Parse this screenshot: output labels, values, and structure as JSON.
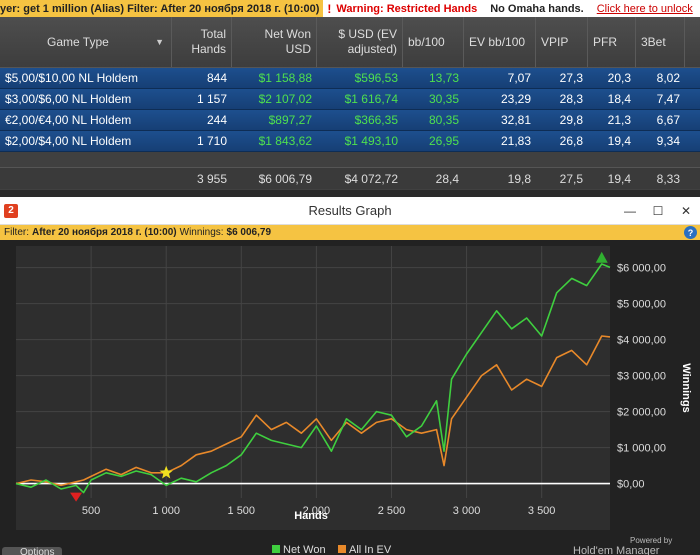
{
  "topbar": {
    "filter_label": "yer: get 1 million (Alias)  Filter: After 20 ноября 2018 г. (10:00)",
    "warning": "Warning: Restricted Hands",
    "no_omaha": "No Omaha hands.",
    "unlock_link": "Click here to unlock",
    "close": "✕"
  },
  "table": {
    "columns": [
      "Game Type",
      "Total Hands",
      "Net Won USD",
      "$ USD (EV adjusted)",
      "bb/100",
      "EV bb/100",
      "VPIP",
      "PFR",
      "3Bet"
    ],
    "rows": [
      [
        "$5,00/$10,00 NL Holdem",
        "844",
        "$1 158,88",
        "$596,53",
        "13,73",
        "7,07",
        "27,3",
        "20,3",
        "8,02"
      ],
      [
        "$3,00/$6,00 NL Holdem",
        "1 157",
        "$2 107,02",
        "$1 616,74",
        "30,35",
        "23,29",
        "28,3",
        "18,4",
        "7,47"
      ],
      [
        "€2,00/€4,00 NL Holdem",
        "244",
        "$897,27",
        "$366,35",
        "80,35",
        "32,81",
        "29,8",
        "21,3",
        "6,67"
      ],
      [
        "$2,00/$4,00 NL Holdem",
        "1 710",
        "$1 843,62",
        "$1 493,10",
        "26,95",
        "21,83",
        "26,8",
        "19,4",
        "9,34"
      ]
    ],
    "totals": [
      "",
      "3 955",
      "$6 006,79",
      "$4 072,72",
      "28,4",
      "19,8",
      "27,5",
      "19,4",
      "8,33"
    ]
  },
  "window": {
    "logo": "2",
    "title": "Results Graph",
    "minimize": "—",
    "maximize": "☐",
    "close": "✕",
    "filter_prefix": "Filter:",
    "filter_value": "After 20 ноября 2018 г. (10:00)",
    "winnings_prefix": "Winnings:",
    "winnings_value": "$6 006,79",
    "help": "?"
  },
  "chart_data": {
    "type": "line",
    "xlabel": "Hands",
    "ylabel": "Winnings",
    "xlim": [
      0,
      3955
    ],
    "ylim": [
      -400,
      6600
    ],
    "x_ticks": [
      500,
      1000,
      1500,
      2000,
      2500,
      3000,
      3500
    ],
    "x_tick_labels": [
      "500",
      "1 000",
      "1 500",
      "2 000",
      "2 500",
      "3 000",
      "3 500"
    ],
    "y_ticks": [
      0,
      1000,
      2000,
      3000,
      4000,
      5000,
      6000
    ],
    "y_tick_labels": [
      "$0,00",
      "$1 000,00",
      "$2 000,00",
      "$3 000,00",
      "$4 000,00",
      "$5 000,00",
      "$6 000,00"
    ],
    "series": [
      {
        "name": "Net Won",
        "color": "#3fcf3f",
        "x": [
          0,
          100,
          200,
          300,
          400,
          450,
          500,
          600,
          700,
          800,
          900,
          1000,
          1100,
          1200,
          1300,
          1400,
          1500,
          1600,
          1700,
          1800,
          1900,
          2000,
          2100,
          2200,
          2300,
          2400,
          2500,
          2600,
          2700,
          2800,
          2850,
          2900,
          3000,
          3100,
          3200,
          3300,
          3400,
          3500,
          3600,
          3700,
          3800,
          3900,
          3955
        ],
        "values": [
          0,
          -100,
          100,
          -150,
          -50,
          -250,
          100,
          300,
          200,
          350,
          250,
          -50,
          150,
          50,
          300,
          500,
          800,
          1400,
          1200,
          1100,
          1000,
          1600,
          900,
          1800,
          1500,
          2000,
          1900,
          1300,
          1600,
          2300,
          900,
          2900,
          3600,
          4200,
          4800,
          4300,
          4600,
          4100,
          5300,
          5700,
          5500,
          6100,
          6007
        ]
      },
      {
        "name": "All In EV",
        "color": "#e8892a",
        "x": [
          0,
          100,
          200,
          300,
          400,
          450,
          500,
          600,
          700,
          800,
          900,
          1000,
          1100,
          1200,
          1300,
          1400,
          1500,
          1600,
          1700,
          1800,
          1900,
          2000,
          2100,
          2200,
          2300,
          2400,
          2500,
          2600,
          2700,
          2800,
          2850,
          2900,
          3000,
          3100,
          3200,
          3300,
          3400,
          3500,
          3600,
          3700,
          3800,
          3900,
          3955
        ],
        "values": [
          0,
          100,
          50,
          -50,
          50,
          100,
          200,
          400,
          250,
          450,
          300,
          300,
          500,
          800,
          900,
          1100,
          1300,
          1900,
          1500,
          1700,
          1400,
          1800,
          1200,
          1700,
          1400,
          1700,
          1800,
          1500,
          1400,
          1500,
          500,
          1800,
          2400,
          3000,
          3300,
          2600,
          2900,
          2700,
          3500,
          3700,
          3300,
          4100,
          4073
        ]
      }
    ],
    "zero_line": true,
    "legend": [
      "Net Won",
      "All In EV"
    ],
    "legend_placement": "bottom",
    "markers": [
      {
        "type": "min-triangle",
        "x": 400,
        "y": -250,
        "color": "#e02020"
      },
      {
        "type": "star",
        "x": 1000,
        "y": 300,
        "color": "#f0e020"
      },
      {
        "type": "max-triangle",
        "x": 3900,
        "y": 6300,
        "color": "#30b030"
      }
    ],
    "grid": true,
    "powered_by": "Powered by",
    "brand": "Hold'em Manager"
  },
  "bottom_button": "Options"
}
